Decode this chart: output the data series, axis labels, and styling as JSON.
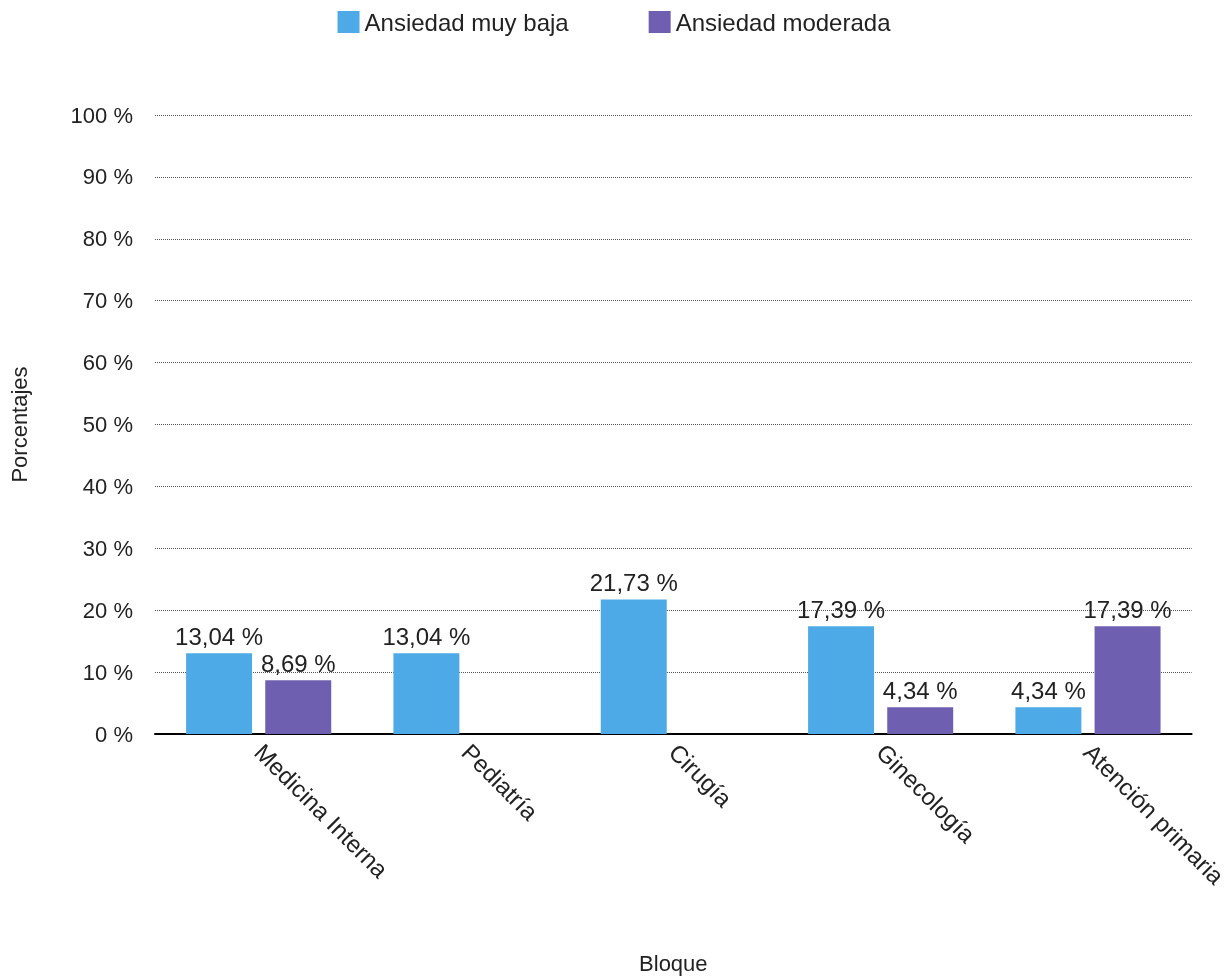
{
  "chart_data": {
    "type": "bar",
    "xlabel": "Bloque",
    "ylabel": "Porcentajes",
    "categories": [
      "Medicina Interna",
      "Pediatría",
      "Cirugía",
      "Ginecología",
      "Atención primaria"
    ],
    "series": [
      {
        "name": "Ansiedad muy baja",
        "color": "#4eaae6",
        "values": [
          13.04,
          13.04,
          21.73,
          17.39,
          4.34
        ],
        "value_labels": [
          "13,04 %",
          "13,04 %",
          "21,73 %",
          "17,39 %",
          "4,34 %"
        ]
      },
      {
        "name": "Ansiedad moderada",
        "color": "#6e5fb0",
        "values": [
          8.69,
          null,
          null,
          4.34,
          17.39
        ],
        "value_labels": [
          "8,69 %",
          null,
          null,
          "4,34 %",
          "17,39 %"
        ]
      }
    ],
    "ylim": [
      0,
      100
    ],
    "yticks": [
      {
        "value": 0,
        "label": "0 %"
      },
      {
        "value": 10,
        "label": "10 %"
      },
      {
        "value": 20,
        "label": "20 %"
      },
      {
        "value": 30,
        "label": "30 %"
      },
      {
        "value": 40,
        "label": "40 %"
      },
      {
        "value": 50,
        "label": "50 %"
      },
      {
        "value": 60,
        "label": "60 %"
      },
      {
        "value": 70,
        "label": "70 %"
      },
      {
        "value": 80,
        "label": "80 %"
      },
      {
        "value": 90,
        "label": "90 %"
      },
      {
        "value": 100,
        "label": "100 %"
      }
    ],
    "grid": "y",
    "legend": "top",
    "line_style": "dotted"
  }
}
